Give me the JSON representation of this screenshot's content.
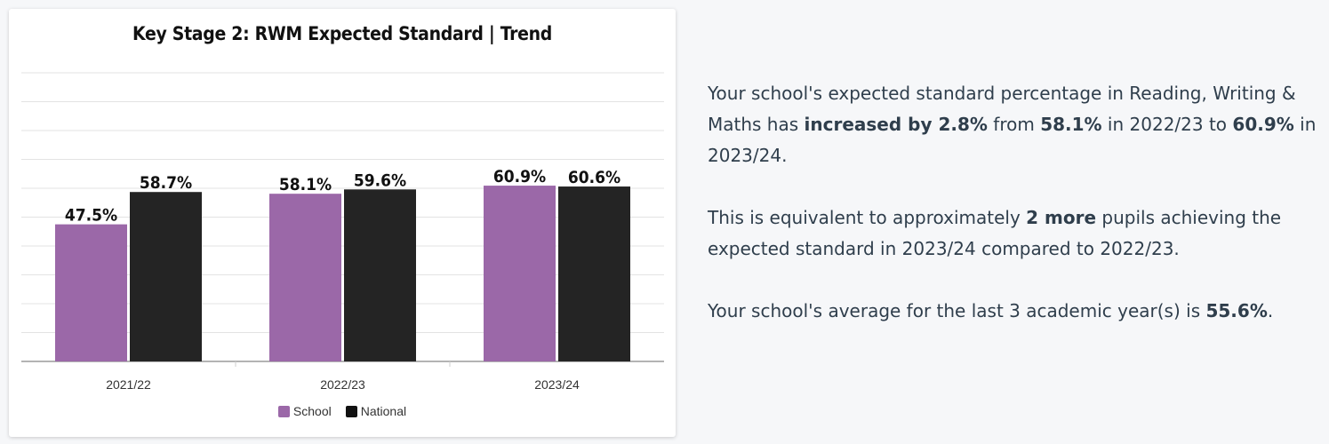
{
  "chart_data": {
    "type": "bar",
    "title": "Key Stage 2: RWM Expected Standard | Trend",
    "categories": [
      "2021/22",
      "2022/23",
      "2023/24"
    ],
    "series": [
      {
        "name": "School",
        "values": [
          47.5,
          58.1,
          60.9
        ],
        "labels": [
          "47.5%",
          "58.1%",
          "60.9%"
        ],
        "color": "#9b68a8"
      },
      {
        "name": "National",
        "values": [
          58.7,
          59.6,
          60.6
        ],
        "labels": [
          "58.7%",
          "59.6%",
          "60.6%"
        ],
        "color": "#242424"
      }
    ],
    "ylim": [
      0,
      100
    ],
    "grid": true,
    "legend_position": "bottom-center"
  },
  "summary": {
    "p1": {
      "a": "Your school's expected standard percentage in Reading, Writing & Maths has ",
      "b": "increased by 2.8%",
      "c": " from ",
      "d": "58.1%",
      "e": " in 2022/23 to ",
      "f": "60.9%",
      "g": " in 2023/24."
    },
    "p2": {
      "a": "This is equivalent to approximately ",
      "b": "2 more",
      "c": " pupils achieving the expected standard in 2023/24 compared to 2022/23."
    },
    "p3": {
      "a": "Your school's average for the last 3 academic year(s) is ",
      "b": "55.6%",
      "c": "."
    }
  }
}
